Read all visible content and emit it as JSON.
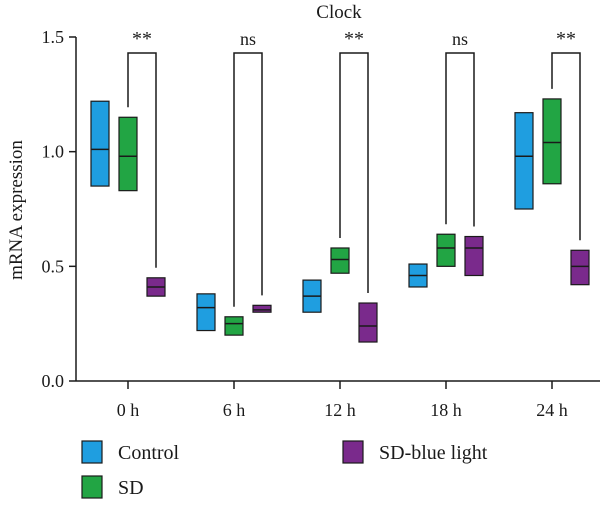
{
  "chart_data": {
    "type": "box",
    "title": "Clock",
    "ylabel": "mRNA expression",
    "xlabel": "",
    "ylim": [
      0,
      1.5
    ],
    "yticks": [
      "0.0",
      "0.5",
      "1.0",
      "1.5"
    ],
    "categories": [
      "0 h",
      "6 h",
      "12 h",
      "18 h",
      "24 h"
    ],
    "series": [
      {
        "name": "Control",
        "color": "#1f9ee0",
        "boxes": [
          {
            "min": 0.85,
            "median": 1.01,
            "max": 1.22
          },
          {
            "min": 0.22,
            "median": 0.32,
            "max": 0.38
          },
          {
            "min": 0.3,
            "median": 0.37,
            "max": 0.44
          },
          {
            "min": 0.41,
            "median": 0.46,
            "max": 0.51
          },
          {
            "min": 0.75,
            "median": 0.98,
            "max": 1.17
          }
        ]
      },
      {
        "name": "SD",
        "color": "#22a544",
        "boxes": [
          {
            "min": 0.83,
            "median": 0.98,
            "max": 1.15
          },
          {
            "min": 0.2,
            "median": 0.25,
            "max": 0.28
          },
          {
            "min": 0.47,
            "median": 0.53,
            "max": 0.58
          },
          {
            "min": 0.5,
            "median": 0.58,
            "max": 0.64
          },
          {
            "min": 0.86,
            "median": 1.04,
            "max": 1.23
          }
        ]
      },
      {
        "name": "SD-blue light",
        "color": "#7a2a8c",
        "boxes": [
          {
            "min": 0.37,
            "median": 0.41,
            "max": 0.45
          },
          {
            "min": 0.3,
            "median": 0.31,
            "max": 0.33
          },
          {
            "min": 0.17,
            "median": 0.24,
            "max": 0.34
          },
          {
            "min": 0.46,
            "median": 0.58,
            "max": 0.63
          },
          {
            "min": 0.42,
            "median": 0.5,
            "max": 0.57
          }
        ]
      }
    ],
    "significance": [
      {
        "category": "0 h",
        "label": "**"
      },
      {
        "category": "6 h",
        "label": "ns"
      },
      {
        "category": "12 h",
        "label": "**"
      },
      {
        "category": "18 h",
        "label": "ns"
      },
      {
        "category": "24 h",
        "label": "**"
      }
    ],
    "legend_position": "bottom"
  }
}
